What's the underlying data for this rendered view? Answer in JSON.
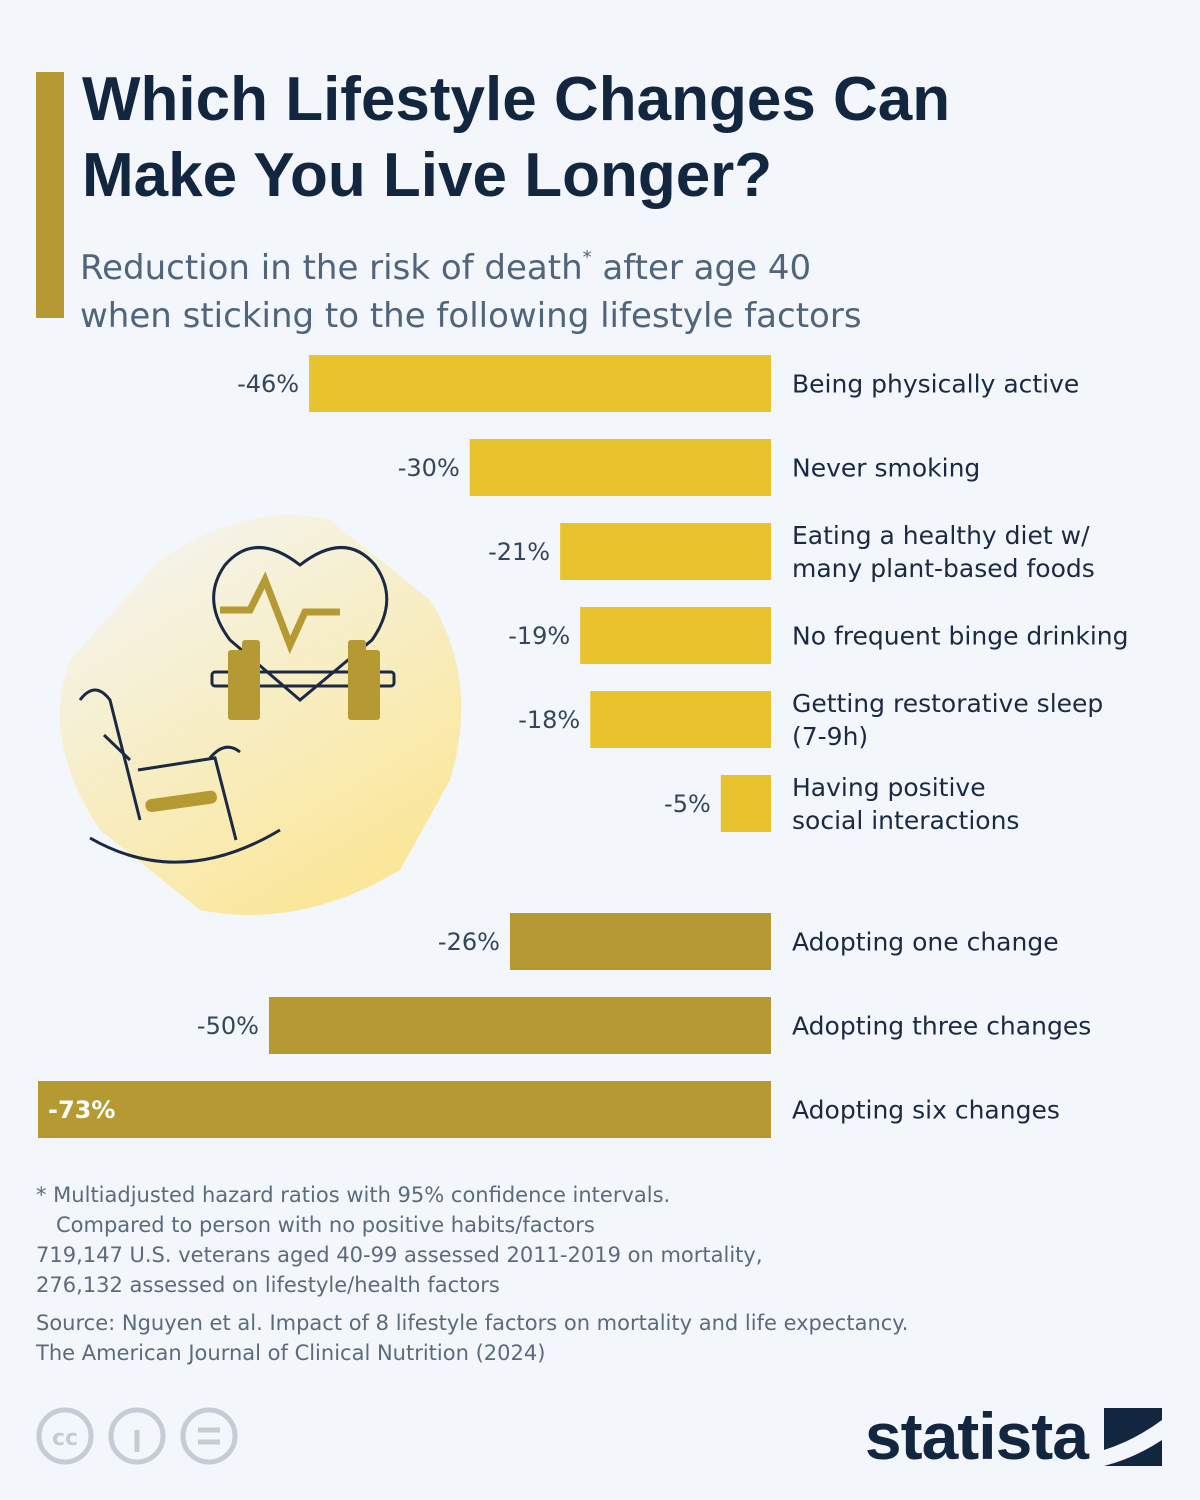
{
  "chart_data": {
    "type": "bar",
    "title": [
      "Which Lifestyle Changes Can",
      "Make You Live Longer?"
    ],
    "subtitle": [
      "Reduction in the risk of death",
      "*",
      " after age 40",
      "when sticking to the following lifestyle factors"
    ],
    "groups": [
      {
        "color": "#e9c32e",
        "categories": [
          "Being physically active",
          "Never smoking",
          "Eating a healthy diet w/\nmany plant-based foods",
          "No frequent binge drinking",
          "Getting restorative sleep\n(7-9h)",
          "Having positive\nsocial interactions"
        ],
        "values": [
          -46,
          -30,
          -21,
          -19,
          -18,
          -5
        ],
        "value_labels": [
          "-46%",
          "-30%",
          "-21%",
          "-19%",
          "-18%",
          "-5%"
        ]
      },
      {
        "color": "#b59a33",
        "categories": [
          "Adopting one change",
          "Adopting three changes",
          "Adopting six changes"
        ],
        "values": [
          -26,
          -50,
          -73
        ],
        "value_labels": [
          "-26%",
          "-50%",
          "-73%"
        ]
      }
    ],
    "notes": [
      "* Multiadjusted hazard ratios with 95% confidence intervals.",
      "Compared to person with no positive habits/factors",
      "719,147 U.S. veterans aged 40-99 assessed 2011-2019 on mortality,",
      "276,132 assessed on lifestyle/health factors"
    ],
    "source": [
      "Source: Nguyen et al. Impact of 8 lifestyle factors on mortality and life expectancy.",
      "The American Journal of Clinical Nutrition (2024)"
    ],
    "license": "cc",
    "brand": "statista"
  }
}
